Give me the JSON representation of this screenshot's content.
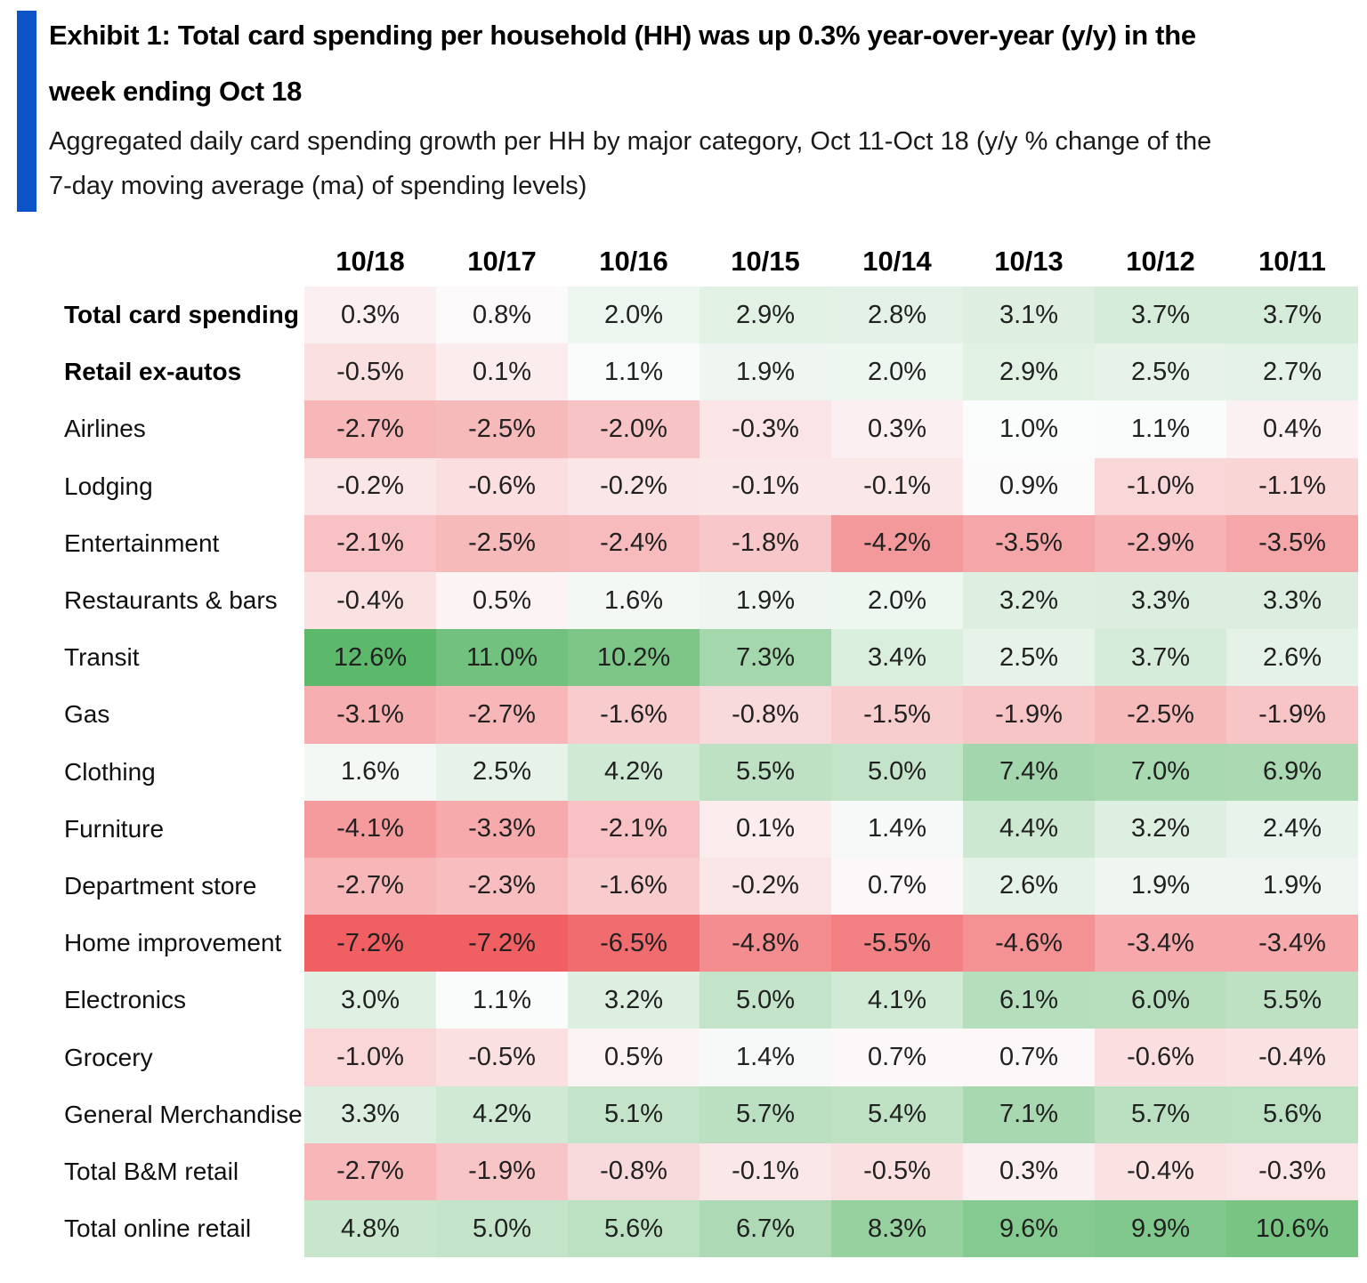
{
  "header": {
    "accent_color": "#0b53c6",
    "title_lines": [
      "Exhibit 1: Total card spending per household (HH) was up 0.3% year-over-year (y/y) in the",
      "week ending Oct 18"
    ],
    "subtitle_lines": [
      "Aggregated daily card spending growth per HH by major category, Oct 11-Oct 18 (y/y % change of the",
      "7-day moving average (ma) of spending levels)"
    ]
  },
  "chart_data": {
    "type": "heatmap",
    "title": "Aggregated daily card spending growth per HH by major category, Oct 11-Oct 18 (y/y % change of the 7-day moving average (ma) of spending levels)",
    "value_unit": "percent",
    "columns": [
      "10/18",
      "10/17",
      "10/16",
      "10/15",
      "10/14",
      "10/13",
      "10/12",
      "10/11"
    ],
    "rows": [
      {
        "label": "Total card spending",
        "bold": true,
        "values": [
          0.3,
          0.8,
          2.0,
          2.9,
          2.8,
          3.1,
          3.7,
          3.7
        ]
      },
      {
        "label": "Retail ex-autos",
        "bold": true,
        "values": [
          -0.5,
          0.1,
          1.1,
          1.9,
          2.0,
          2.9,
          2.5,
          2.7
        ]
      },
      {
        "label": "Airlines",
        "bold": false,
        "values": [
          -2.7,
          -2.5,
          -2.0,
          -0.3,
          0.3,
          1.0,
          1.1,
          0.4
        ]
      },
      {
        "label": "Lodging",
        "bold": false,
        "values": [
          -0.2,
          -0.6,
          -0.2,
          -0.1,
          -0.1,
          0.9,
          -1.0,
          -1.1
        ]
      },
      {
        "label": "Entertainment",
        "bold": false,
        "values": [
          -2.1,
          -2.5,
          -2.4,
          -1.8,
          -4.2,
          -3.5,
          -2.9,
          -3.5
        ]
      },
      {
        "label": "Restaurants & bars",
        "bold": false,
        "values": [
          -0.4,
          0.5,
          1.6,
          1.9,
          2.0,
          3.2,
          3.3,
          3.3
        ]
      },
      {
        "label": "Transit",
        "bold": false,
        "values": [
          12.6,
          11.0,
          10.2,
          7.3,
          3.4,
          2.5,
          3.7,
          2.6
        ]
      },
      {
        "label": "Gas",
        "bold": false,
        "values": [
          -3.1,
          -2.7,
          -1.6,
          -0.8,
          -1.5,
          -1.9,
          -2.5,
          -1.9
        ]
      },
      {
        "label": "Clothing",
        "bold": false,
        "values": [
          1.6,
          2.5,
          4.2,
          5.5,
          5.0,
          7.4,
          7.0,
          6.9
        ]
      },
      {
        "label": "Furniture",
        "bold": false,
        "values": [
          -4.1,
          -3.3,
          -2.1,
          0.1,
          1.4,
          4.4,
          3.2,
          2.4
        ]
      },
      {
        "label": "Department store",
        "bold": false,
        "values": [
          -2.7,
          -2.3,
          -1.6,
          -0.2,
          0.7,
          2.6,
          1.9,
          1.9
        ]
      },
      {
        "label": "Home improvement",
        "bold": false,
        "values": [
          -7.2,
          -7.2,
          -6.5,
          -4.8,
          -5.5,
          -4.6,
          -3.4,
          -3.4
        ]
      },
      {
        "label": "Electronics",
        "bold": false,
        "values": [
          3.0,
          1.1,
          3.2,
          5.0,
          4.1,
          6.1,
          6.0,
          5.5
        ]
      },
      {
        "label": "Grocery",
        "bold": false,
        "values": [
          -1.0,
          -0.5,
          0.5,
          1.4,
          0.7,
          0.7,
          -0.6,
          -0.4
        ]
      },
      {
        "label": "General Merchandise",
        "bold": false,
        "values": [
          3.3,
          4.2,
          5.1,
          5.7,
          5.4,
          7.1,
          5.7,
          5.6
        ]
      },
      {
        "label": "Total B&M retail",
        "bold": false,
        "values": [
          -2.7,
          -1.9,
          -0.8,
          -0.1,
          -0.5,
          0.3,
          -0.4,
          -0.3
        ]
      },
      {
        "label": "Total online retail",
        "bold": false,
        "values": [
          4.8,
          5.0,
          5.6,
          6.7,
          8.3,
          9.6,
          9.9,
          10.6
        ]
      }
    ],
    "color_scale": {
      "min": -7.2,
      "mid": 0.95,
      "max": 12.6,
      "min_color": "#f05f62",
      "mid_color": "#fcfcfd",
      "max_color": "#5cb86a"
    },
    "legend_position": "none",
    "grid": false
  }
}
